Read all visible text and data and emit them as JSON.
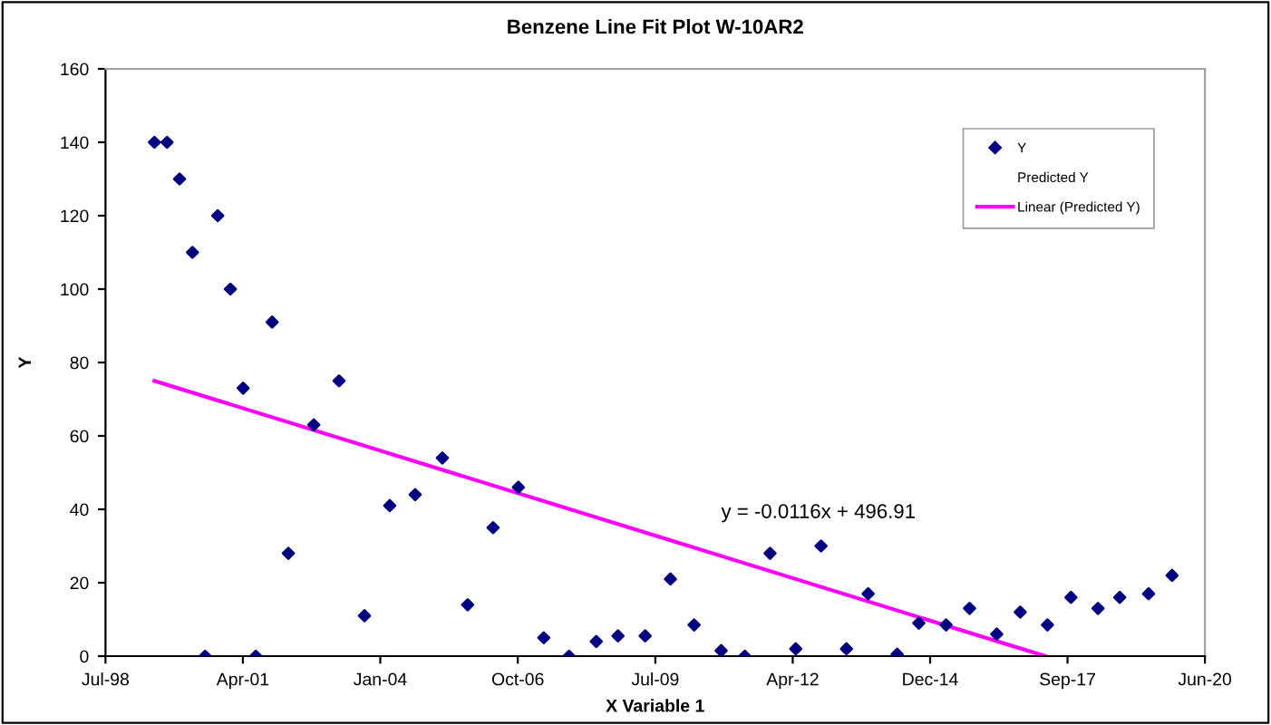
{
  "chart_data": {
    "type": "scatter",
    "title": "Benzene Line Fit Plot W-10AR2",
    "xlabel": "X Variable 1",
    "ylabel": "Y",
    "xlim": [
      "1998-07-24",
      "2020-06-20"
    ],
    "xticks": [
      {
        "value": "1998-07-24",
        "label": "Jul-98"
      },
      {
        "value": "2001-04-19",
        "label": "Apr-01"
      },
      {
        "value": "2004-01-14",
        "label": "Jan-04"
      },
      {
        "value": "2006-10-11",
        "label": "Oct-06"
      },
      {
        "value": "2009-07-08",
        "label": "Jul-09"
      },
      {
        "value": "2012-04-03",
        "label": "Apr-12"
      },
      {
        "value": "2014-12-29",
        "label": "Dec-14"
      },
      {
        "value": "2017-09-24",
        "label": "Sep-17"
      },
      {
        "value": "2020-06-20",
        "label": "Jun-20"
      }
    ],
    "ylim": [
      0,
      160
    ],
    "yticks": [
      0,
      20,
      40,
      60,
      80,
      100,
      120,
      140,
      160
    ],
    "grid": false,
    "legend": "top right",
    "series": [
      {
        "name": "Y",
        "marker": "diamond",
        "color": "#000080",
        "x": [
          "1999-07-15",
          "1999-10-15",
          "2000-01-14",
          "2000-04-17",
          "2000-07-18",
          "2000-10-18",
          "2001-01-18",
          "2001-04-21",
          "2001-07-22",
          "2001-11-18",
          "2002-03-16",
          "2002-09-17",
          "2003-03-20",
          "2003-09-21",
          "2004-03-23",
          "2004-09-24",
          "2005-04-10",
          "2005-10-11",
          "2006-04-14",
          "2006-10-15",
          "2007-04-18",
          "2007-10-19",
          "2008-05-04",
          "2008-10-09",
          "2009-04-25",
          "2009-10-26",
          "2010-04-16",
          "2010-10-30",
          "2011-04-20",
          "2011-10-21",
          "2012-04-25",
          "2012-10-26",
          "2013-04-29",
          "2013-10-04",
          "2014-05-03",
          "2014-10-08",
          "2015-04-24",
          "2015-10-12",
          "2016-04-27",
          "2016-10-15",
          "2017-05-01",
          "2017-10-19",
          "2018-05-04",
          "2018-10-09",
          "2019-05-07",
          "2019-10-25"
        ],
        "values": [
          140,
          140,
          130,
          110,
          0,
          120,
          100,
          73,
          0,
          91,
          28,
          63,
          75,
          11,
          41,
          44,
          54,
          14,
          35,
          46,
          5,
          0,
          4,
          5.5,
          5.5,
          21,
          8.5,
          1.5,
          0,
          28,
          2,
          30,
          2,
          17,
          0.5,
          9,
          8.5,
          13,
          6,
          12,
          8.5,
          16,
          13,
          16,
          17,
          22
        ]
      },
      {
        "name": "Predicted Y",
        "type": "scatter",
        "marker": "none"
      },
      {
        "name": "Linear (Predicted Y)",
        "type": "line",
        "marker": "none",
        "line_style": "solid",
        "color": "#ff00ff",
        "x": [
          "1999-07-15",
          "2017-04-14"
        ],
        "values": [
          75,
          0
        ]
      }
    ],
    "annotations": [
      "y = -0.0116x + 496.91"
    ]
  }
}
